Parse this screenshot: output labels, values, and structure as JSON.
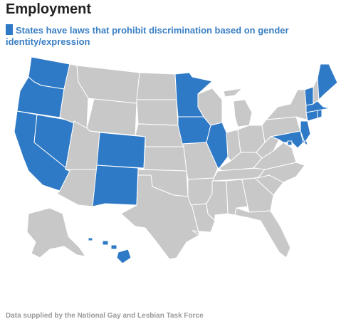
{
  "title": "Employment",
  "legend": {
    "text": "States have laws that prohibit discrimination based on gender identity/expression",
    "color": "#2f7ac6"
  },
  "colors": {
    "protected": "#2f7ac6",
    "other": "#c8c8c8",
    "border": "#ffffff"
  },
  "map_data": {
    "protected_states": [
      "WA",
      "OR",
      "CA",
      "NV",
      "CO",
      "NM",
      "MN",
      "IA",
      "IL",
      "ME",
      "VT",
      "MA",
      "RI",
      "CT",
      "NJ",
      "DE",
      "MD",
      "DC",
      "HI"
    ],
    "other_states": [
      "ID",
      "MT",
      "WY",
      "UT",
      "AZ",
      "ND",
      "SD",
      "NE",
      "KS",
      "OK",
      "TX",
      "MO",
      "AR",
      "LA",
      "WI",
      "MI",
      "IN",
      "OH",
      "KY",
      "TN",
      "MS",
      "AL",
      "GA",
      "FL",
      "SC",
      "NC",
      "VA",
      "WV",
      "PA",
      "NY",
      "NH",
      "AK"
    ]
  },
  "source": "Data supplied by the National Gay and Lesbian Task Force"
}
